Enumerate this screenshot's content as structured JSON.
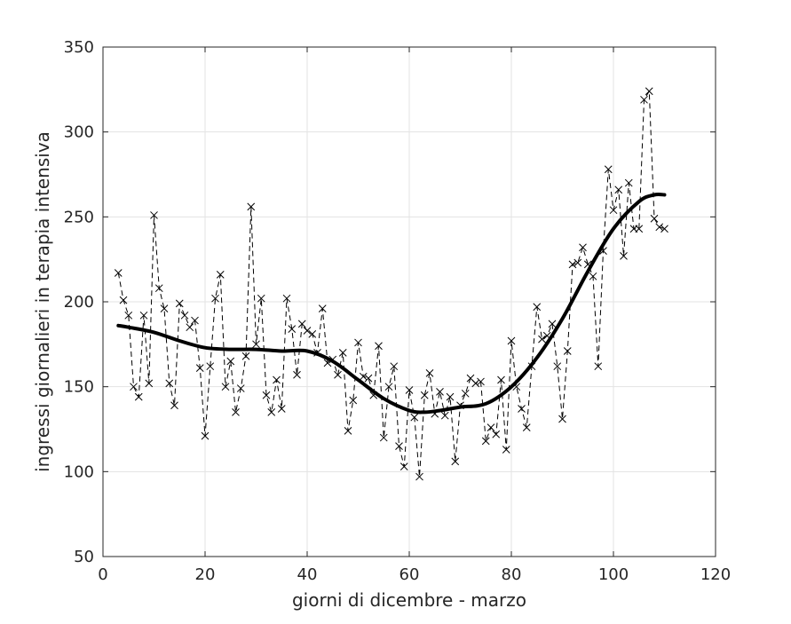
{
  "chart_data": {
    "type": "line",
    "title": "",
    "xlabel": "giorni di dicembre - marzo",
    "ylabel": "ingressi giornalieri in terapia intensiva",
    "xlim": [
      0,
      120
    ],
    "ylim": [
      50,
      350
    ],
    "xticks": [
      0,
      20,
      40,
      60,
      80,
      100,
      120
    ],
    "yticks": [
      50,
      100,
      150,
      200,
      250,
      300,
      350
    ],
    "grid": true,
    "series": [
      {
        "style": "dashed-line-with-x-markers",
        "color": "#000000",
        "x": [
          3,
          4,
          5,
          6,
          7,
          8,
          9,
          10,
          11,
          12,
          13,
          14,
          15,
          16,
          17,
          18,
          19,
          20,
          21,
          22,
          23,
          24,
          25,
          26,
          27,
          28,
          29,
          30,
          31,
          32,
          33,
          34,
          35,
          36,
          37,
          38,
          39,
          40,
          41,
          42,
          43,
          44,
          45,
          46,
          47,
          48,
          49,
          50,
          51,
          52,
          53,
          54,
          55,
          56,
          57,
          58,
          59,
          60,
          61,
          62,
          63,
          64,
          65,
          66,
          67,
          68,
          69,
          70,
          71,
          72,
          73,
          74,
          75,
          76,
          77,
          78,
          79,
          80,
          81,
          82,
          83,
          84,
          85,
          86,
          87,
          88,
          89,
          90,
          91,
          92,
          93,
          94,
          95,
          96,
          97,
          98,
          99,
          100,
          101,
          102,
          103,
          104,
          105,
          106,
          107,
          108,
          109,
          110
        ],
        "y": [
          217,
          201,
          192,
          150,
          144,
          192,
          152,
          251,
          208,
          196,
          152,
          139,
          199,
          192,
          185,
          189,
          161,
          121,
          162,
          202,
          216,
          150,
          165,
          135,
          149,
          168,
          256,
          175,
          202,
          145,
          135,
          154,
          137,
          202,
          184,
          157,
          187,
          183,
          181,
          170,
          196,
          164,
          166,
          157,
          170,
          124,
          142,
          176,
          156,
          155,
          145,
          174,
          120,
          150,
          162,
          115,
          103,
          148,
          132,
          97,
          145,
          158,
          134,
          147,
          133,
          144,
          106,
          139,
          146,
          155,
          152,
          153,
          118,
          126,
          122,
          154,
          113,
          177,
          150,
          137,
          126,
          162,
          197,
          178,
          180,
          187,
          162,
          131,
          171,
          222,
          223,
          232,
          222,
          215,
          162,
          230,
          278,
          254,
          266,
          227,
          270,
          243,
          243,
          319,
          324,
          249,
          244,
          243
        ]
      },
      {
        "style": "thick-solid-smooth",
        "color": "#000000",
        "x": [
          3,
          5,
          10,
          15,
          20,
          25,
          30,
          35,
          40,
          45,
          50,
          55,
          60,
          63,
          66,
          70,
          75,
          80,
          85,
          90,
          95,
          100,
          105,
          108,
          110
        ],
        "y": [
          186,
          185,
          182,
          177,
          173,
          172,
          172,
          171,
          171,
          165,
          154,
          143,
          136,
          135,
          136,
          138,
          140,
          150,
          167,
          190,
          218,
          243,
          259,
          263,
          263
        ]
      }
    ]
  }
}
